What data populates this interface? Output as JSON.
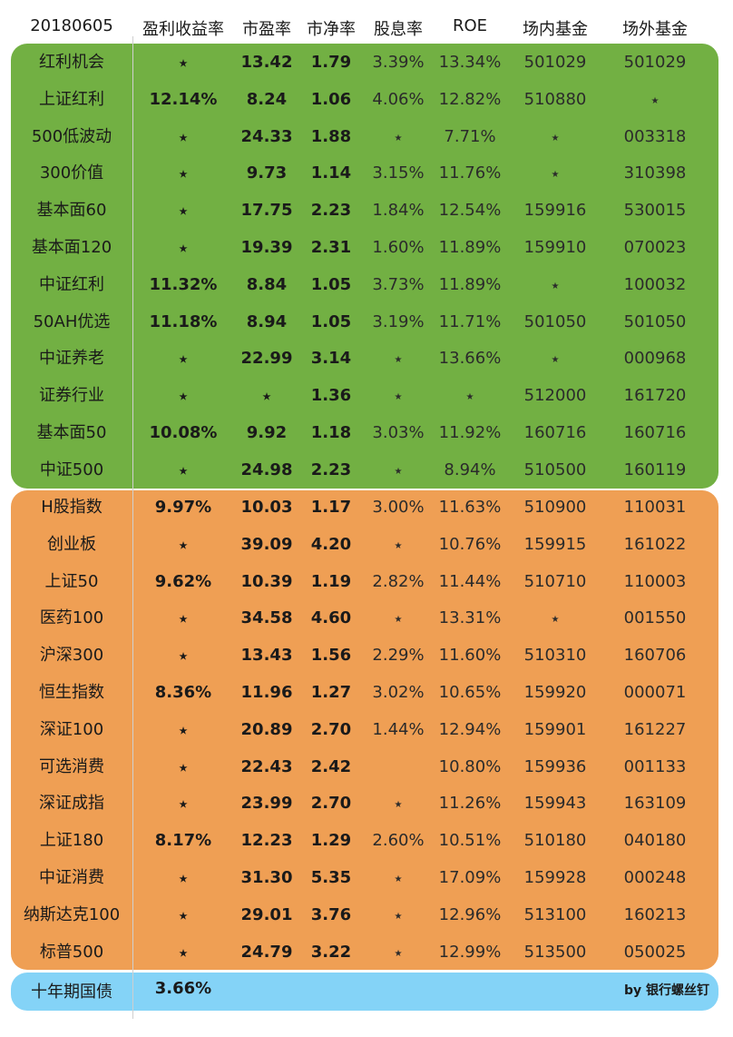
{
  "header": {
    "date": "20180605",
    "columns": [
      "盈利收益率",
      "市盈率",
      "市净率",
      "股息率",
      "ROE",
      "场内基金",
      "场外基金"
    ]
  },
  "colors": {
    "green": "#72b043",
    "orange": "#ef9f54",
    "blue": "#84d3f7"
  },
  "groups": {
    "green": [
      [
        "红利机会",
        "*",
        "13.42",
        "1.79",
        "3.39%",
        "13.34%",
        "501029",
        "501029"
      ],
      [
        "上证红利",
        "12.14%",
        "8.24",
        "1.06",
        "4.06%",
        "12.82%",
        "510880",
        "*"
      ],
      [
        "500低波动",
        "*",
        "24.33",
        "1.88",
        "*",
        "7.71%",
        "*",
        "003318"
      ],
      [
        "300价值",
        "*",
        "9.73",
        "1.14",
        "3.15%",
        "11.76%",
        "*",
        "310398"
      ],
      [
        "基本面60",
        "*",
        "17.75",
        "2.23",
        "1.84%",
        "12.54%",
        "159916",
        "530015"
      ],
      [
        "基本面120",
        "*",
        "19.39",
        "2.31",
        "1.60%",
        "11.89%",
        "159910",
        "070023"
      ],
      [
        "中证红利",
        "11.32%",
        "8.84",
        "1.05",
        "3.73%",
        "11.89%",
        "*",
        "100032"
      ],
      [
        "50AH优选",
        "11.18%",
        "8.94",
        "1.05",
        "3.19%",
        "11.71%",
        "501050",
        "501050"
      ],
      [
        "中证养老",
        "*",
        "22.99",
        "3.14",
        "*",
        "13.66%",
        "*",
        "000968"
      ],
      [
        "证券行业",
        "*",
        "*",
        "1.36",
        "*",
        "*",
        "512000",
        "161720"
      ],
      [
        "基本面50",
        "10.08%",
        "9.92",
        "1.18",
        "3.03%",
        "11.92%",
        "160716",
        "160716"
      ],
      [
        "中证500",
        "*",
        "24.98",
        "2.23",
        "*",
        "8.94%",
        "510500",
        "160119"
      ]
    ],
    "orange": [
      [
        "H股指数",
        "9.97%",
        "10.03",
        "1.17",
        "3.00%",
        "11.63%",
        "510900",
        "110031"
      ],
      [
        "创业板",
        "*",
        "39.09",
        "4.20",
        "*",
        "10.76%",
        "159915",
        "161022"
      ],
      [
        "上证50",
        "9.62%",
        "10.39",
        "1.19",
        "2.82%",
        "11.44%",
        "510710",
        "110003"
      ],
      [
        "医药100",
        "*",
        "34.58",
        "4.60",
        "*",
        "13.31%",
        "*",
        "001550"
      ],
      [
        "沪深300",
        "*",
        "13.43",
        "1.56",
        "2.29%",
        "11.60%",
        "510310",
        "160706"
      ],
      [
        "恒生指数",
        "8.36%",
        "11.96",
        "1.27",
        "3.02%",
        "10.65%",
        "159920",
        "000071"
      ],
      [
        "深证100",
        "*",
        "20.89",
        "2.70",
        "1.44%",
        "12.94%",
        "159901",
        "161227"
      ],
      [
        "可选消费",
        "*",
        "22.43",
        "2.42",
        "",
        "10.80%",
        "159936",
        "001133"
      ],
      [
        "深证成指",
        "*",
        "23.99",
        "2.70",
        "*",
        "11.26%",
        "159943",
        "163109"
      ],
      [
        "上证180",
        "8.17%",
        "12.23",
        "1.29",
        "2.60%",
        "10.51%",
        "510180",
        "040180"
      ],
      [
        "中证消费",
        "*",
        "31.30",
        "5.35",
        "*",
        "17.09%",
        "159928",
        "000248"
      ],
      [
        "纳斯达克100",
        "*",
        "29.01",
        "3.76",
        "*",
        "12.96%",
        "513100",
        "160213"
      ],
      [
        "标普500",
        "*",
        "24.79",
        "3.22",
        "*",
        "12.99%",
        "513500",
        "050025"
      ]
    ]
  },
  "footer": {
    "name": "十年期国债",
    "yield": "3.66%",
    "credit": "by 银行螺丝钉"
  }
}
